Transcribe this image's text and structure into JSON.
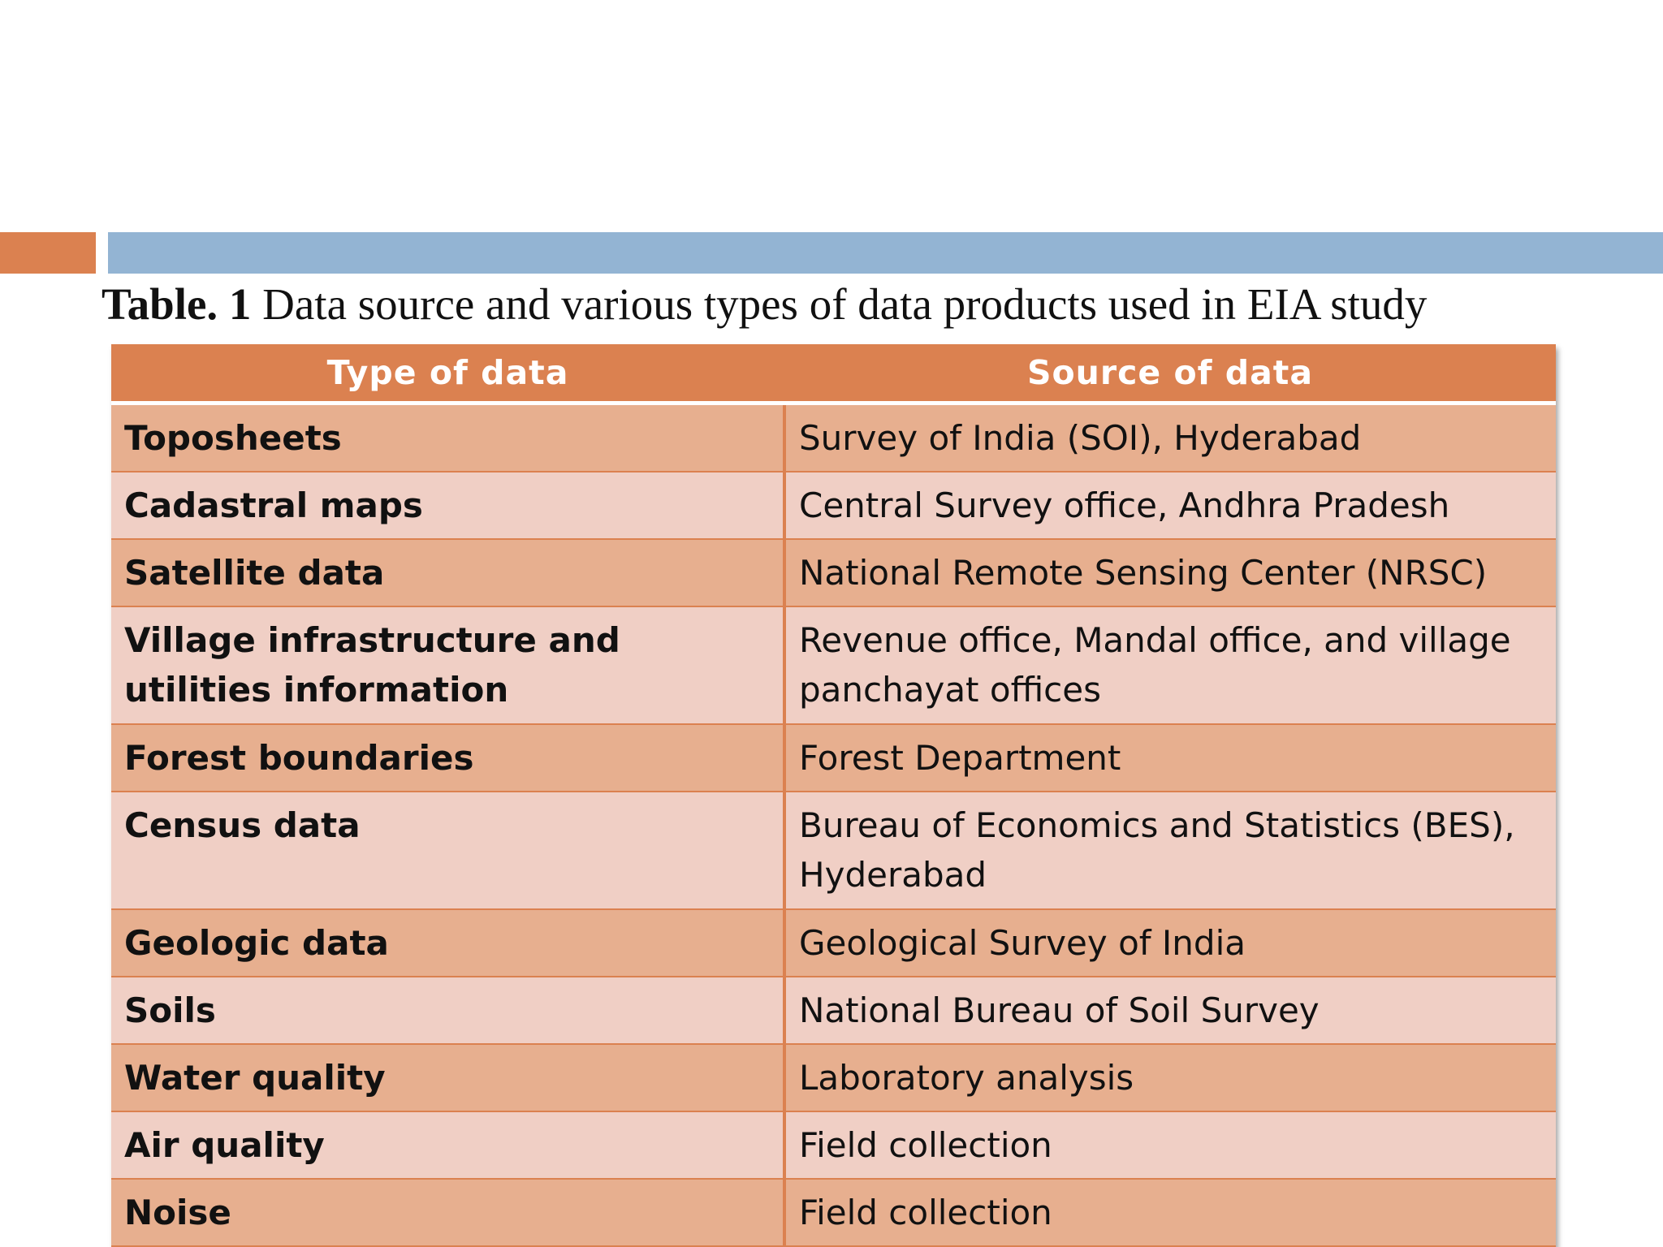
{
  "slide": {
    "caption_label": "Table. 1",
    "caption_text": " Data source and various types of data products used in EIA study",
    "accent_colors": {
      "orange": "#DB8150",
      "blue": "#93B4D3"
    }
  },
  "table": {
    "headers": [
      "Type of data",
      "Source of data"
    ],
    "rows": [
      {
        "type": "Toposheets",
        "source": "Survey of India (SOI), Hyderabad"
      },
      {
        "type": "Cadastral maps",
        "source": "Central Survey office, Andhra Pradesh"
      },
      {
        "type": "Satellite data",
        "source": "National Remote Sensing Center (NRSC)"
      },
      {
        "type": "Village infrastructure and utilities information",
        "source": "Revenue office, Mandal office, and village panchayat offices"
      },
      {
        "type": "Forest boundaries",
        "source": "Forest Department"
      },
      {
        "type": "Census data",
        "source": "Bureau of Economics and Statistics (BES), Hyderabad"
      },
      {
        "type": "Geologic data",
        "source": "Geological Survey of India"
      },
      {
        "type": "Soils",
        "source": "National Bureau of Soil Survey"
      },
      {
        "type": "Water quality",
        "source": "Laboratory analysis"
      },
      {
        "type": "Air quality",
        "source": "Field collection"
      },
      {
        "type": "Noise",
        "source": "Field collection"
      }
    ],
    "colors": {
      "header": "#DB8150",
      "row_dark": "#E7AF8F",
      "row_light": "#F0CFC5"
    }
  }
}
